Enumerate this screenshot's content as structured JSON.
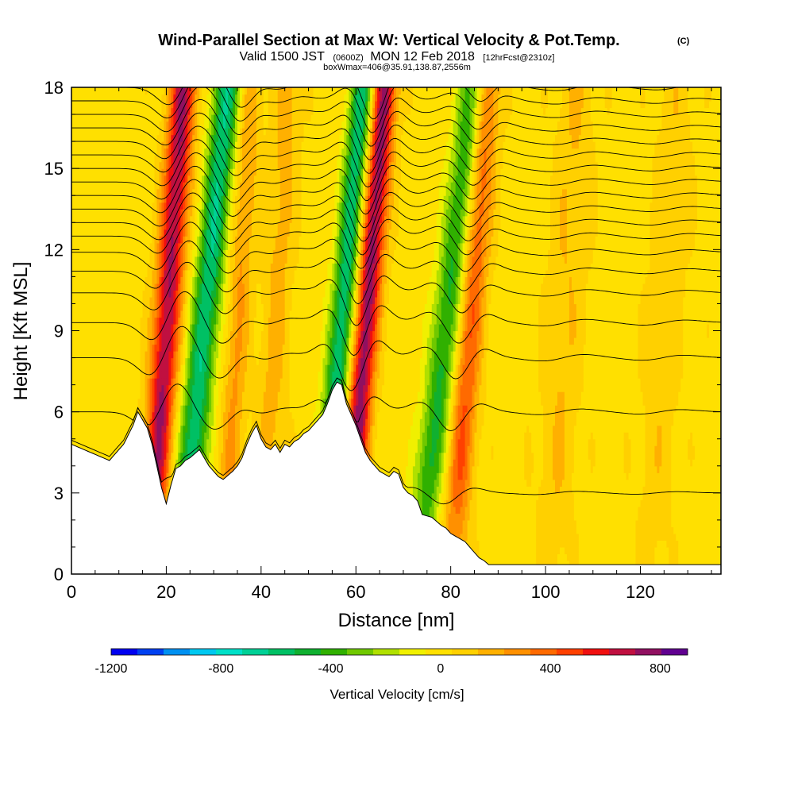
{
  "chart_data": {
    "type": "heatmap",
    "title": "Wind-Parallel Section at Max W: Vertical Velocity & Pot.Temp.",
    "title_tag": "(C)",
    "subtitle_main": "Valid 1500 JST",
    "subtitle_utc": "(0600Z)",
    "subtitle_date": "MON 12 Feb 2018",
    "subtitle_fcst": "[12hrFcst@2310z]",
    "subtitle_box": "boxWmax=406@35.91,138.87,2556m",
    "xlabel": "Distance [nm]",
    "ylabel": "Height [Kft MSL]",
    "xlim": [
      0,
      137
    ],
    "ylim": [
      0,
      18
    ],
    "x_ticks": [
      0,
      20,
      40,
      60,
      80,
      100,
      120
    ],
    "y_ticks": [
      0,
      3,
      6,
      9,
      12,
      15,
      18
    ],
    "colorbar": {
      "label": "Vertical Velocity [cm/s]",
      "range": [
        -1200,
        900
      ],
      "step": 100,
      "ticks": [
        -1200,
        -800,
        -400,
        0,
        400,
        800
      ],
      "colors": [
        "#0000f0",
        "#0040f0",
        "#0090f0",
        "#00c8f0",
        "#00e0c8",
        "#00d096",
        "#00c064",
        "#10b030",
        "#30b000",
        "#70c800",
        "#b0e000",
        "#f0f000",
        "#ffe000",
        "#ffd000",
        "#ffb000",
        "#ff9000",
        "#ff6a00",
        "#ff4000",
        "#f01010",
        "#c01040",
        "#901060",
        "#600090"
      ]
    },
    "waves": [
      {
        "x": 20,
        "amp": 750,
        "width": 2.8,
        "tilt": 0.4
      },
      {
        "x": 28,
        "amp": -650,
        "width": 3.0,
        "tilt": 0.55
      },
      {
        "x": 35,
        "amp": 250,
        "width": 2.5,
        "tilt": 0.3
      },
      {
        "x": 43,
        "amp": 180,
        "width": 3.0,
        "tilt": 0.3
      },
      {
        "x": 57,
        "amp": -650,
        "width": 2.6,
        "tilt": 0.5
      },
      {
        "x": 62,
        "amp": 800,
        "width": 2.6,
        "tilt": 0.45
      },
      {
        "x": 79,
        "amp": -500,
        "width": 3.0,
        "tilt": 0.65
      },
      {
        "x": 84,
        "amp": 450,
        "width": 2.8,
        "tilt": 0.4
      },
      {
        "x": 104,
        "amp": 140,
        "width": 4.0,
        "tilt": 0.3
      },
      {
        "x": 125,
        "amp": 110,
        "width": 4.0,
        "tilt": 0.3
      }
    ],
    "terrain": {
      "x": [
        0,
        4,
        8,
        11,
        13,
        14,
        16,
        17,
        18,
        19,
        20,
        21,
        22,
        23,
        24,
        25,
        27,
        29,
        30,
        31,
        32,
        34,
        35,
        36,
        37,
        38,
        39,
        40,
        41,
        42,
        43,
        44,
        45,
        46,
        47,
        48,
        49,
        50,
        51,
        52,
        53,
        54,
        55,
        56,
        57,
        58,
        59,
        60,
        61,
        62,
        63,
        64,
        65,
        66,
        67,
        68,
        69,
        70,
        71,
        72,
        73,
        74,
        76,
        78,
        79,
        80,
        81,
        82,
        83,
        84,
        85,
        86,
        87,
        88,
        90,
        100,
        110,
        120,
        137
      ],
      "h": [
        4.8,
        4.5,
        4.2,
        4.8,
        5.5,
        6.0,
        5.4,
        4.8,
        4.0,
        3.2,
        2.6,
        3.3,
        3.9,
        4.0,
        4.2,
        4.3,
        4.6,
        4.0,
        3.8,
        3.6,
        3.5,
        3.8,
        4.0,
        4.3,
        4.8,
        5.2,
        5.5,
        5.0,
        4.7,
        4.6,
        4.8,
        4.5,
        4.8,
        4.7,
        4.9,
        5.0,
        5.2,
        5.3,
        5.5,
        5.7,
        5.9,
        6.3,
        6.8,
        7.1,
        7.0,
        6.3,
        5.9,
        5.5,
        5.0,
        4.5,
        4.2,
        4.0,
        3.8,
        3.7,
        3.6,
        3.8,
        3.7,
        3.2,
        3.0,
        2.9,
        2.7,
        2.2,
        2.1,
        1.8,
        1.7,
        1.5,
        1.4,
        1.3,
        1.2,
        1.0,
        0.8,
        0.6,
        0.5,
        0.35,
        0.35,
        0.35,
        0.35,
        0.35,
        0.35
      ]
    },
    "isentropes": {
      "levels": [
        3,
        6,
        8,
        9.3,
        10.4,
        11.2,
        11.9,
        12.5,
        13.0,
        13.5,
        14.0,
        14.5,
        15.0,
        15.5,
        16.0,
        16.5,
        17.0,
        17.5,
        18.0
      ]
    }
  }
}
